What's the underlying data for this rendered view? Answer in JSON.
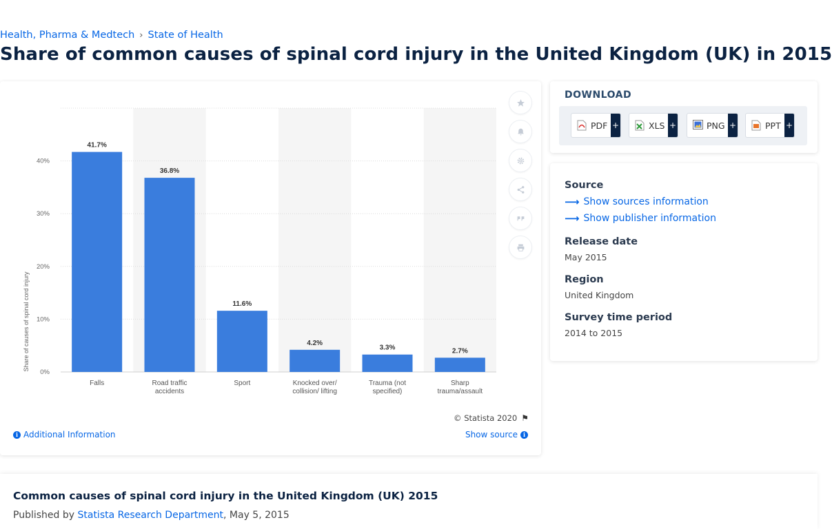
{
  "breadcrumb": {
    "items": [
      "Health, Pharma & Medtech",
      "State of Health"
    ],
    "separator": "›"
  },
  "title": "Share of common causes of spinal cord injury in the United Kingdom (UK) in 2015",
  "chart_data": {
    "type": "bar",
    "categories": [
      "Falls",
      "Road traffic accidents",
      "Sport",
      "Knocked over/ collision/ lifting",
      "Trauma (not specified)",
      "Sharp trauma/assault"
    ],
    "category_lines": [
      [
        "Falls"
      ],
      [
        "Road traffic",
        "accidents"
      ],
      [
        "Sport"
      ],
      [
        "Knocked over/",
        "collision/ lifting"
      ],
      [
        "Trauma (not",
        "specified)"
      ],
      [
        "Sharp",
        "trauma/assault"
      ]
    ],
    "values": [
      41.7,
      36.8,
      11.6,
      4.2,
      3.3,
      2.7
    ],
    "data_labels": [
      "41.7%",
      "36.8%",
      "11.6%",
      "4.2%",
      "3.3%",
      "2.7%"
    ],
    "ylabel": "Share of causes of spinal cord injury",
    "xlabel": "",
    "ylim": [
      0,
      50
    ],
    "yticks": [
      0,
      10,
      20,
      30,
      40
    ],
    "ytick_labels": [
      "0%",
      "10%",
      "20%",
      "30%",
      "40%"
    ],
    "grid": true,
    "bar_color": "#3a7ddd",
    "alt_band_color": "#f5f5f5"
  },
  "toolbar": {
    "icons": [
      "star-icon",
      "bell-icon",
      "gear-icon",
      "share-icon",
      "quote-icon",
      "print-icon"
    ]
  },
  "chart_footer": {
    "copyright": "© Statista 2020",
    "additional_info": "Additional Information",
    "show_source": "Show source"
  },
  "download": {
    "title": "DOWNLOAD",
    "formats": [
      "PDF",
      "XLS",
      "PNG",
      "PPT"
    ],
    "plus": "+",
    "colors": {
      "pdf": "#d9302c",
      "xls": "#2e9a3a",
      "png": "#3a6fd8",
      "ppt": "#e8742a"
    }
  },
  "info": {
    "source_label": "Source",
    "sources_link": "Show sources information",
    "publisher_link": "Show publisher information",
    "release_label": "Release date",
    "release_value": "May 2015",
    "region_label": "Region",
    "region_value": "United Kingdom",
    "period_label": "Survey time period",
    "period_value": "2014 to 2015"
  },
  "footer": {
    "title": "Common causes of spinal cord injury in the United Kingdom (UK) 2015",
    "published_by": "Published by",
    "publisher": "Statista Research Department",
    "date": ", May 5, 2015"
  },
  "theme": {
    "accent": "#0666e5",
    "navy": "#0b2242"
  }
}
